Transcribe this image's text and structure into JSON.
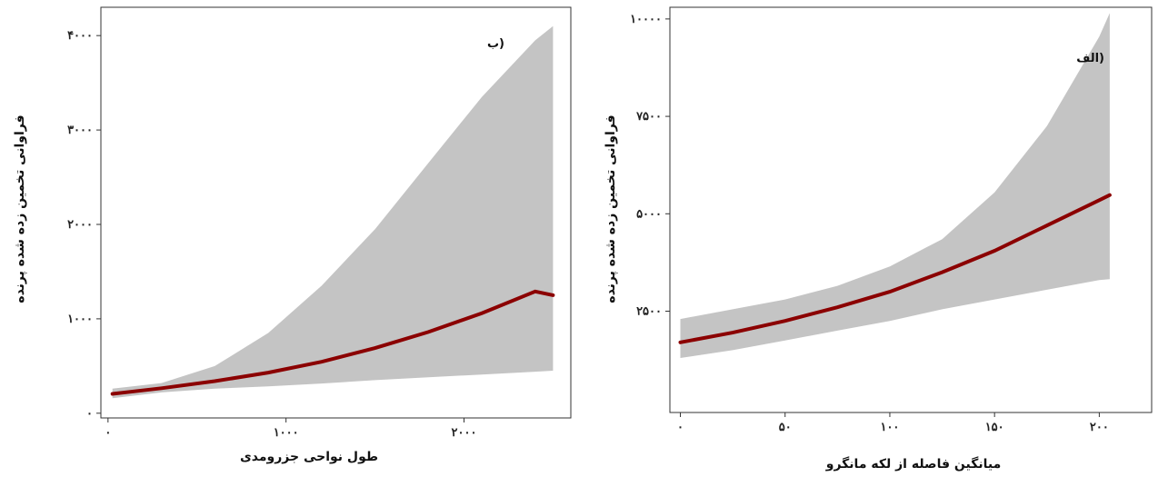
{
  "colors": {
    "band": "#c4c4c4",
    "line": "#8b0000"
  },
  "chart_data": [
    {
      "type": "area",
      "panel_label": "ب)",
      "xlabel": "طول نواحی جزرومدی",
      "ylabel": "فراوانی تخمین زده شده پرنده",
      "xlim": [
        -40,
        2600
      ],
      "ylim": [
        -50,
        4300
      ],
      "x_ticks": [
        0,
        1000,
        2000
      ],
      "x_tick_labels": [
        "۰",
        "۱۰۰۰",
        "۲۰۰۰"
      ],
      "y_ticks": [
        0,
        1000,
        2000,
        3000,
        4000
      ],
      "y_tick_labels": [
        "۰",
        "۱۰۰۰",
        "۲۰۰۰",
        "۳۰۰۰",
        "۴۰۰۰"
      ],
      "grid": false,
      "x": [
        25,
        300,
        600,
        900,
        1200,
        1500,
        1800,
        2100,
        2400,
        2500
      ],
      "y": [
        205,
        265,
        340,
        430,
        545,
        690,
        860,
        1060,
        1290,
        1250
      ],
      "lower": [
        160,
        220,
        260,
        285,
        315,
        350,
        380,
        410,
        440,
        450
      ],
      "upper": [
        260,
        320,
        500,
        850,
        1350,
        1950,
        2650,
        3350,
        3950,
        4100
      ]
    },
    {
      "type": "area",
      "panel_label": "الف)",
      "xlabel": "میانگین فاصله از لکه مانگرو",
      "ylabel": "فراوانی تخمین زده شده پرنده",
      "xlim": [
        -5,
        225
      ],
      "ylim": [
        -100,
        10300
      ],
      "x_ticks": [
        0,
        50,
        100,
        150,
        200
      ],
      "x_tick_labels": [
        "۰",
        "۵۰",
        "۱۰۰",
        "۱۵۰",
        "۲۰۰"
      ],
      "y_ticks": [
        2500,
        5000,
        7500,
        10000
      ],
      "y_tick_labels": [
        "۲۵۰۰",
        "۵۰۰۰",
        "۷۵۰۰",
        "۱۰۰۰۰"
      ],
      "grid": false,
      "x": [
        0,
        25,
        50,
        75,
        100,
        125,
        150,
        175,
        200,
        205
      ],
      "y": [
        1700,
        1950,
        2250,
        2600,
        3000,
        3500,
        4050,
        4700,
        5350,
        5480
      ],
      "lower": [
        1300,
        1500,
        1750,
        2000,
        2250,
        2550,
        2800,
        3050,
        3300,
        3320
      ],
      "upper": [
        2300,
        2550,
        2800,
        3150,
        3650,
        4350,
        5550,
        7250,
        9550,
        10150
      ]
    }
  ]
}
